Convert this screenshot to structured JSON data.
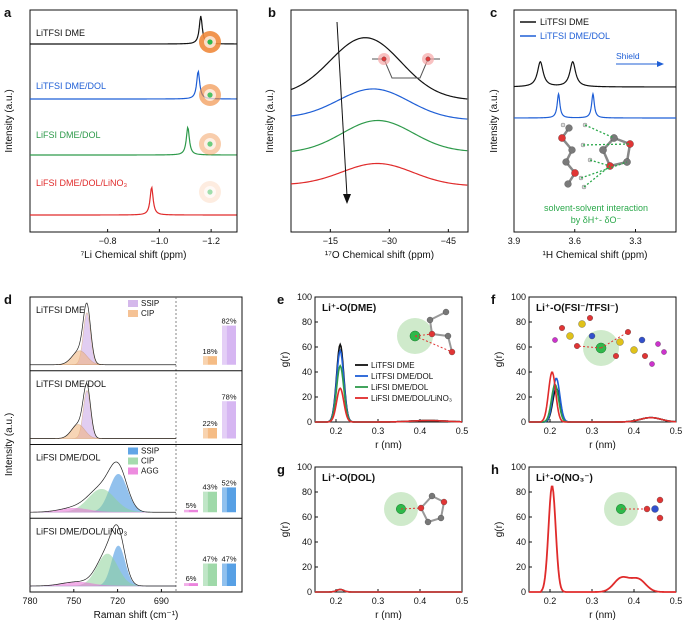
{
  "colors": {
    "black": "#111111",
    "blue": "#1f5fd6",
    "green": "#2e9a4b",
    "red": "#e02b2b",
    "li_sphere": "#a8d8a0",
    "li_core": "#2fb84a",
    "ssip_purple": "#c9a6e6",
    "cip_orange": "#f2b37a",
    "agg_magenta": "#e86fd7",
    "bar_blue": "#3a8fe0",
    "bar_green": "#8ed29a",
    "bar_orange": "#f3b070",
    "bar_violet": "#cfa9f0"
  },
  "panels": {
    "a": {
      "letter": "a"
    },
    "b": {
      "letter": "b",
      "arrow_note": "downfield shift"
    },
    "c": {
      "letter": "c"
    },
    "d": {
      "letter": "d"
    },
    "e": {
      "letter": "e",
      "title": "Li⁺-O(DME)"
    },
    "f": {
      "letter": "f",
      "title": "Li⁺-O(FSI⁻/TFSI⁻)"
    },
    "g": {
      "letter": "g",
      "title": "Li⁺-O(DOL)"
    },
    "h": {
      "letter": "h",
      "title": "Li⁺-O(NO₃⁻)"
    }
  },
  "chart_data": [
    {
      "id": "a",
      "type": "line",
      "title": "",
      "xlabel": "⁷Li Chemical shift (ppm)",
      "ylabel": "Intensity (a.u.)",
      "xlim": [
        -0.5,
        -1.3
      ],
      "xticks": [
        -0.8,
        -1.0,
        -1.2
      ],
      "xtick_labels": [
        "−0.8",
        "−1.0",
        "−1.2"
      ],
      "series": [
        {
          "name": "LiTFSI DME",
          "color": "black",
          "peak": -1.16,
          "label": "LiTFSI DME"
        },
        {
          "name": "LiTFSI DME/DOL",
          "color": "blue",
          "peak": -1.15,
          "label": "LiTFSI DME/DOL"
        },
        {
          "name": "LiFSI DME/DOL",
          "color": "green",
          "peak": -1.11,
          "label": "LiFSI DME/DOL"
        },
        {
          "name": "LiFSI DME/DOL/LiNO₃",
          "color": "red",
          "peak": -0.97,
          "label": "LiFSI DME/DOL/LiNO₃"
        }
      ]
    },
    {
      "id": "b",
      "type": "line",
      "xlabel": "¹⁷O Chemical shift (ppm)",
      "ylabel": "Intensity (a.u.)",
      "xlim": [
        -5,
        -50
      ],
      "xticks": [
        -15,
        -30,
        -45
      ],
      "xtick_labels": [
        "−15",
        "−30",
        "−45"
      ],
      "series": [
        {
          "name": "LiTFSI DME",
          "color": "black",
          "peak": -24
        },
        {
          "name": "LiTFSI DME/DOL",
          "color": "blue",
          "peak": -26
        },
        {
          "name": "LiFSI DME/DOL",
          "color": "green",
          "peak": -27
        },
        {
          "name": "LiFSI DME/DOL/LiNO₃",
          "color": "red",
          "peak": -27
        }
      ]
    },
    {
      "id": "c",
      "type": "line",
      "xlabel": "¹H Chemical shift (ppm)",
      "ylabel": "Intensity (a.u.)",
      "xlim": [
        3.9,
        3.1
      ],
      "xticks": [
        3.9,
        3.6,
        3.3
      ],
      "xtick_labels": [
        "3.9",
        "3.6",
        "3.3"
      ],
      "legend": [
        "LiTFSI DME",
        "LiTFSI DME/DOL"
      ],
      "annotation_shield": "Shield",
      "annotation_text": [
        "solvent-solvent interaction",
        "by δH⁺- δO⁻"
      ],
      "series": [
        {
          "name": "LiTFSI DME",
          "color": "black",
          "peaks": [
            3.77,
            3.61
          ]
        },
        {
          "name": "LiTFSI DME/DOL",
          "color": "blue",
          "peaks": [
            3.68,
            3.51
          ]
        }
      ]
    },
    {
      "id": "d",
      "type": "area",
      "xlabel": "Raman shift (cm⁻¹)",
      "ylabel": "Intensity (a.u.)",
      "xlim": [
        780,
        680
      ],
      "xticks": [
        780,
        750,
        720,
        690
      ],
      "xtick_labels": [
        "780",
        "750",
        "720",
        "690"
      ],
      "rows": [
        {
          "label": "LiTFSI DME",
          "legend": [
            "SSIP",
            "CIP"
          ],
          "bars": [
            {
              "name": "CIP",
              "value": 18
            },
            {
              "name": "SSIP",
              "value": 82
            }
          ],
          "bar_labels": [
            "18%",
            "82%"
          ]
        },
        {
          "label": "LiTFSI DME/DOL",
          "legend": [],
          "bars": [
            {
              "name": "CIP",
              "value": 22
            },
            {
              "name": "SSIP",
              "value": 78
            }
          ],
          "bar_labels": [
            "22%",
            "78%"
          ]
        },
        {
          "label": "LiFSI DME/DOL",
          "legend": [
            "SSIP",
            "CIP",
            "AGG"
          ],
          "bars": [
            {
              "name": "AGG",
              "value": 5
            },
            {
              "name": "CIP",
              "value": 43
            },
            {
              "name": "SSIP",
              "value": 52
            }
          ],
          "bar_labels": [
            "5%",
            "43%",
            "52%"
          ]
        },
        {
          "label": "LiFSI DME/DOL/LiNO₃",
          "legend": [],
          "bars": [
            {
              "name": "AGG",
              "value": 6
            },
            {
              "name": "CIP",
              "value": 47
            },
            {
              "name": "SSIP",
              "value": 47
            }
          ],
          "bar_labels": [
            "6%",
            "47%",
            "47%"
          ]
        }
      ]
    },
    {
      "id": "e",
      "type": "line",
      "xlabel": "r (nm)",
      "ylabel": "g(r)",
      "xlim": [
        0.15,
        0.5
      ],
      "ylim": [
        0,
        100
      ],
      "xticks": [
        0.2,
        0.3,
        0.4,
        0.5
      ],
      "xtick_labels": [
        "0.2",
        "0.3",
        "0.4",
        "0.5"
      ],
      "yticks": [
        0,
        20,
        40,
        60,
        80,
        100
      ],
      "legend": [
        "LiTFSI DME",
        "LiTFSI DME/DOL",
        "LiFSI DME/DOL",
        "LiFSI DME/DOL/LiNO₃"
      ],
      "series": [
        {
          "name": "LiTFSI DME",
          "color": "black",
          "peak": 62,
          "r": 0.21
        },
        {
          "name": "LiTFSI DME/DOL",
          "color": "blue",
          "peak": 57,
          "r": 0.21
        },
        {
          "name": "LiFSI DME/DOL",
          "color": "green",
          "peak": 45,
          "r": 0.21
        },
        {
          "name": "LiFSI DME/DOL/LiNO₃",
          "color": "red",
          "peak": 27,
          "r": 0.21
        }
      ]
    },
    {
      "id": "f",
      "type": "line",
      "xlabel": "r (nm)",
      "ylabel": "g(r)",
      "xlim": [
        0.15,
        0.5
      ],
      "ylim": [
        0,
        100
      ],
      "xticks": [
        0.2,
        0.3,
        0.4,
        0.5
      ],
      "xtick_labels": [
        "0.2",
        "0.3",
        "0.4",
        "0.5"
      ],
      "yticks": [
        0,
        20,
        40,
        60,
        80,
        100
      ],
      "series": [
        {
          "name": "LiTFSI DME",
          "color": "black",
          "peak": 27,
          "r": 0.215
        },
        {
          "name": "LiTFSI DME/DOL",
          "color": "blue",
          "peak": 35,
          "r": 0.215
        },
        {
          "name": "LiFSI DME/DOL",
          "color": "green",
          "peak": 30,
          "r": 0.212
        },
        {
          "name": "LiFSI DME/DOL/LiNO₃",
          "color": "red",
          "peak": 40,
          "r": 0.205
        }
      ]
    },
    {
      "id": "g",
      "type": "line",
      "xlabel": "r (nm)",
      "ylabel": "g(r)",
      "xlim": [
        0.15,
        0.5
      ],
      "ylim": [
        0,
        100
      ],
      "xticks": [
        0.2,
        0.3,
        0.4,
        0.5
      ],
      "xtick_labels": [
        "0.2",
        "0.3",
        "0.4",
        "0.5"
      ],
      "yticks": [
        0,
        20,
        40,
        60,
        80,
        100
      ],
      "series": [
        {
          "name": "LiTFSI DME/DOL",
          "color": "blue",
          "peak": 2,
          "r": 0.21
        },
        {
          "name": "LiFSI DME/DOL",
          "color": "green",
          "peak": 2,
          "r": 0.21
        },
        {
          "name": "LiFSI DME/DOL/LiNO₃",
          "color": "red",
          "peak": 2,
          "r": 0.21
        }
      ]
    },
    {
      "id": "h",
      "type": "line",
      "xlabel": "r (nm)",
      "ylabel": "g(r)",
      "xlim": [
        0.15,
        0.5
      ],
      "ylim": [
        0,
        100
      ],
      "xticks": [
        0.2,
        0.3,
        0.4,
        0.5
      ],
      "xtick_labels": [
        "0.2",
        "0.3",
        "0.4",
        "0.5"
      ],
      "yticks": [
        0,
        20,
        40,
        60,
        80,
        100
      ],
      "series": [
        {
          "name": "LiFSI DME/DOL/LiNO₃",
          "color": "red",
          "peak": 85,
          "r": 0.205,
          "second_peaks": [
            {
              "r": 0.37,
              "y": 11
            },
            {
              "r": 0.41,
              "y": 10
            }
          ]
        }
      ]
    }
  ]
}
